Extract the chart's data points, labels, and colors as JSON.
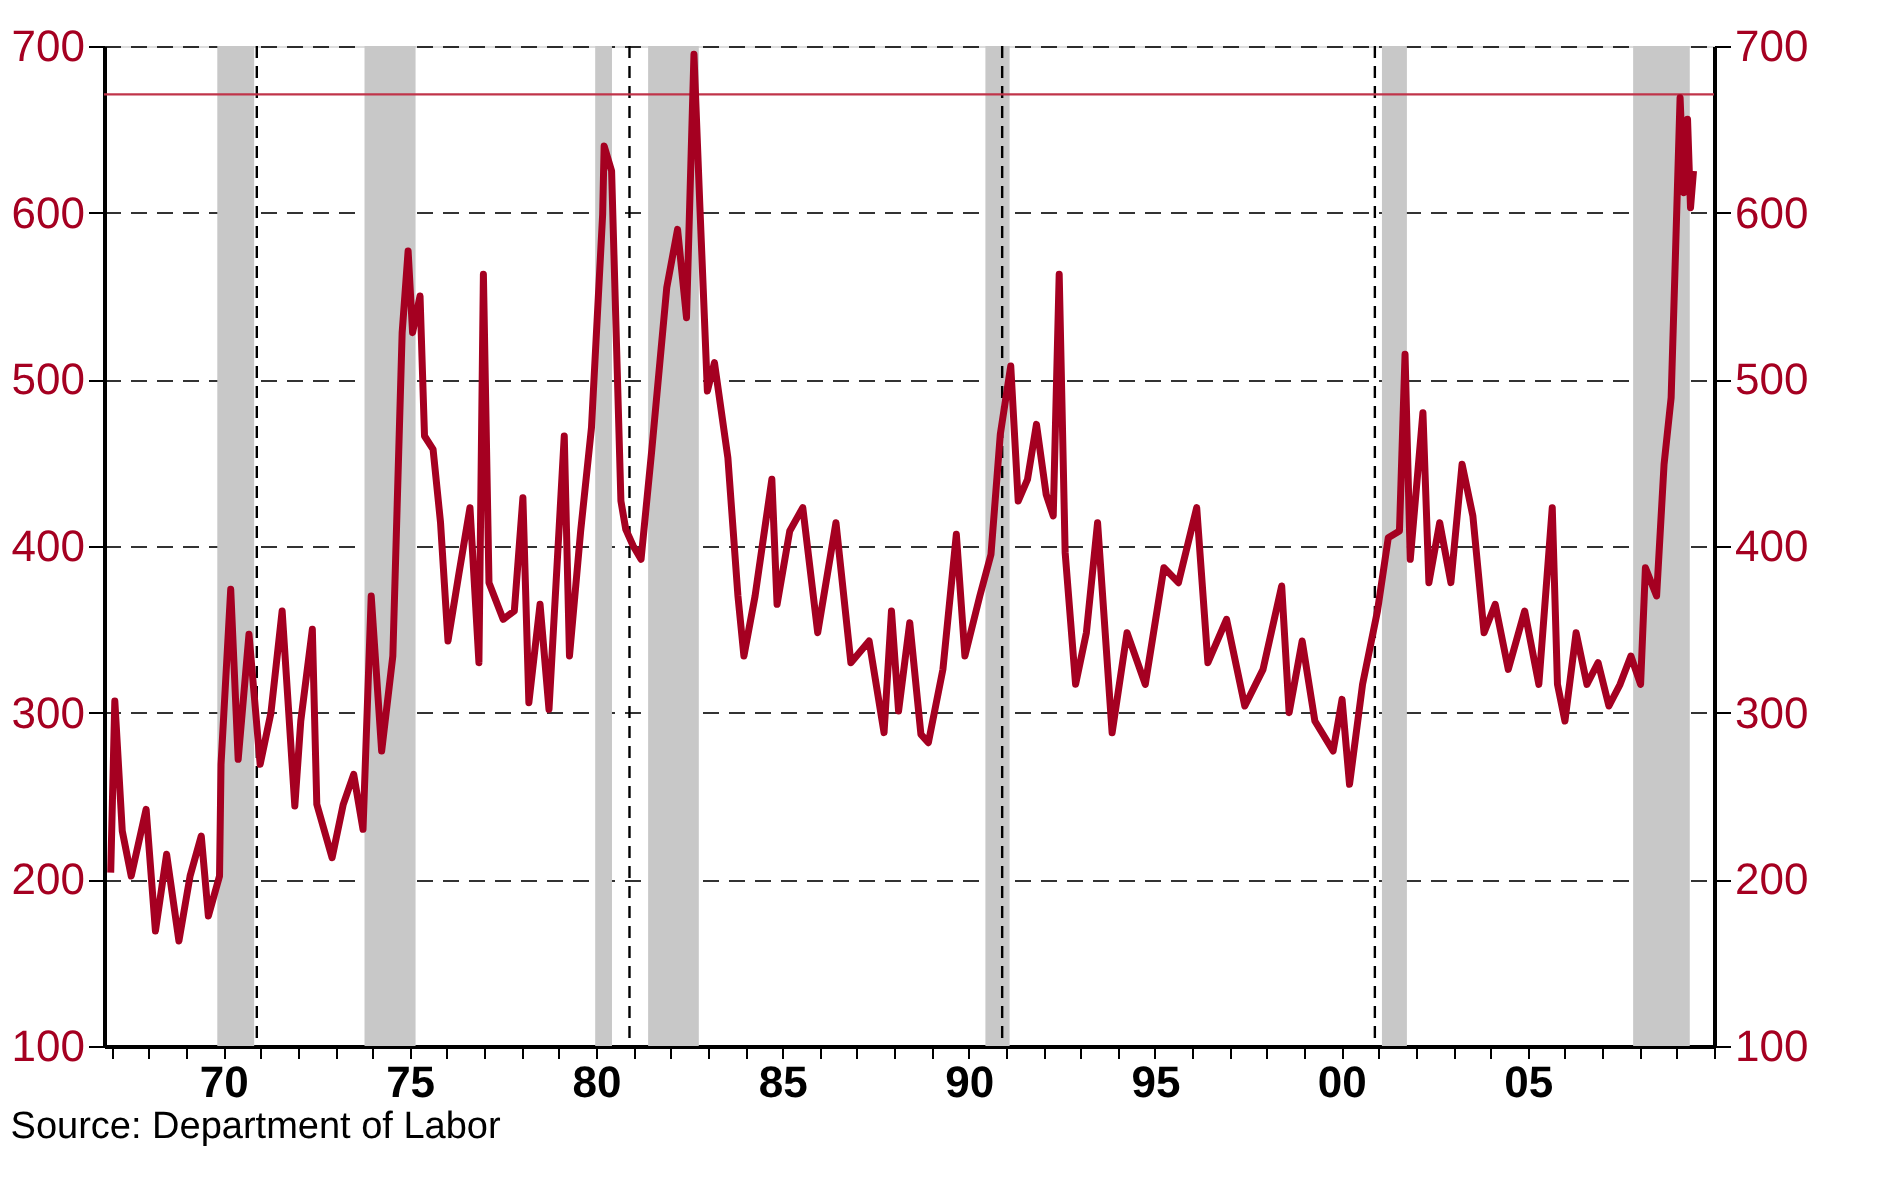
{
  "chart_data": {
    "type": "line",
    "x": [
      1966.98,
      1967.09,
      1967.29,
      1967.53,
      1967.93,
      1968.18,
      1968.48,
      1968.81,
      1969.11,
      1969.41,
      1969.6,
      1969.9,
      1969.94,
      1970.2,
      1970.4,
      1970.69,
      1970.99,
      1971.28,
      1971.58,
      1971.92,
      1972.08,
      1972.39,
      1972.51,
      1972.92,
      1973.22,
      1973.5,
      1973.75,
      1973.97,
      1974.25,
      1974.55,
      1974.8,
      1974.96,
      1975.08,
      1975.28,
      1975.4,
      1975.63,
      1975.83,
      1976.03,
      1976.32,
      1976.62,
      1976.86,
      1976.98,
      1977.13,
      1977.51,
      1977.81,
      1978.04,
      1978.2,
      1978.5,
      1978.74,
      1979.15,
      1979.29,
      1979.59,
      1979.88,
      1980.18,
      1980.22,
      1980.42,
      1980.67,
      1980.8,
      1981.0,
      1981.21,
      1981.5,
      1981.9,
      1982.19,
      1982.43,
      1982.63,
      1982.79,
      1982.99,
      1983.18,
      1983.54,
      1983.81,
      1983.97,
      1984.27,
      1984.72,
      1984.86,
      1985.2,
      1985.55,
      1985.95,
      1986.44,
      1986.84,
      1987.33,
      1987.73,
      1987.93,
      1988.12,
      1988.42,
      1988.72,
      1988.92,
      1989.31,
      1989.67,
      1989.9,
      1990.3,
      1990.6,
      1990.85,
      1991.13,
      1991.33,
      1991.58,
      1991.82,
      1992.08,
      1992.27,
      1992.43,
      1992.59,
      1992.87,
      1993.16,
      1993.46,
      1993.85,
      1994.25,
      1994.74,
      1995.24,
      1995.63,
      1996.12,
      1996.42,
      1996.92,
      1997.41,
      1997.9,
      1998.4,
      1998.6,
      1998.95,
      1999.29,
      1999.78,
      2000.02,
      2000.22,
      2000.57,
      2000.97,
      2001.26,
      2001.56,
      2001.71,
      2001.85,
      2002.19,
      2002.35,
      2002.64,
      2002.94,
      2003.24,
      2003.53,
      2003.83,
      2004.13,
      2004.48,
      2004.92,
      2005.3,
      2005.66,
      2005.8,
      2006.0,
      2006.3,
      2006.59,
      2006.89,
      2007.18,
      2007.48,
      2007.77,
      2008.03,
      2008.16,
      2008.46,
      2008.66,
      2008.85,
      2008.95,
      2009.09,
      2009.19,
      2009.29,
      2009.37,
      2009.45
    ],
    "series": [
      {
        "color": "#a50021",
        "values": [
          204,
          307,
          229,
          202,
          242,
          169,
          215,
          163,
          202,
          226,
          178,
          202,
          269,
          374,
          272,
          347,
          269,
          300,
          361,
          244,
          295,
          350,
          245,
          213,
          245,
          263,
          230,
          370,
          277,
          334,
          528,
          577,
          528,
          550,
          466,
          458,
          414,
          343,
          383,
          423,
          330,
          563,
          378,
          356,
          361,
          429,
          306,
          365,
          302,
          466,
          334,
          409,
          471,
          599,
          640,
          625,
          427,
          410,
          400,
          392,
          458,
          555,
          590,
          537,
          695,
          603,
          493,
          510,
          453,
          370,
          334,
          370,
          440,
          365,
          409,
          423,
          348,
          414,
          330,
          343,
          288,
          361,
          301,
          354,
          287,
          282,
          326,
          407,
          334,
          370,
          395,
          467,
          508,
          427,
          440,
          473,
          431,
          418,
          563,
          396,
          317,
          348,
          414,
          288,
          348,
          317,
          387,
          378,
          423,
          330,
          356,
          304,
          326,
          376,
          300,
          343,
          295,
          277,
          308,
          257,
          317,
          361,
          405,
          409,
          515,
          392,
          480,
          378,
          414,
          378,
          449,
          418,
          348,
          365,
          326,
          361,
          317,
          423,
          317,
          295,
          348,
          317,
          330,
          304,
          317,
          334,
          317,
          387,
          370,
          449,
          489,
          563,
          669,
          612,
          656,
          603,
          625
        ]
      }
    ],
    "xlim": [
      1966.8,
      2010
    ],
    "xticks": [
      {
        "value": 1967,
        "label": null
      },
      {
        "value": 1968,
        "label": null
      },
      {
        "value": 1969,
        "label": null
      },
      {
        "value": 1970,
        "label": "70"
      },
      {
        "value": 1971,
        "label": null
      },
      {
        "value": 1972,
        "label": null
      },
      {
        "value": 1973,
        "label": null
      },
      {
        "value": 1974,
        "label": null
      },
      {
        "value": 1975,
        "label": "75"
      },
      {
        "value": 1976,
        "label": null
      },
      {
        "value": 1977,
        "label": null
      },
      {
        "value": 1978,
        "label": null
      },
      {
        "value": 1979,
        "label": null
      },
      {
        "value": 1980,
        "label": "80"
      },
      {
        "value": 1981,
        "label": null
      },
      {
        "value": 1982,
        "label": null
      },
      {
        "value": 1983,
        "label": null
      },
      {
        "value": 1984,
        "label": null
      },
      {
        "value": 1985,
        "label": "85"
      },
      {
        "value": 1986,
        "label": null
      },
      {
        "value": 1987,
        "label": null
      },
      {
        "value": 1988,
        "label": null
      },
      {
        "value": 1989,
        "label": null
      },
      {
        "value": 1990,
        "label": "90"
      },
      {
        "value": 1991,
        "label": null
      },
      {
        "value": 1992,
        "label": null
      },
      {
        "value": 1993,
        "label": null
      },
      {
        "value": 1994,
        "label": null
      },
      {
        "value": 1995,
        "label": "95"
      },
      {
        "value": 1996,
        "label": null
      },
      {
        "value": 1997,
        "label": null
      },
      {
        "value": 1998,
        "label": null
      },
      {
        "value": 1999,
        "label": null
      },
      {
        "value": 2000,
        "label": "00"
      },
      {
        "value": 2001,
        "label": null
      },
      {
        "value": 2002,
        "label": null
      },
      {
        "value": 2003,
        "label": null
      },
      {
        "value": 2004,
        "label": null
      },
      {
        "value": 2005,
        "label": "05"
      },
      {
        "value": 2006,
        "label": null
      },
      {
        "value": 2007,
        "label": null
      },
      {
        "value": 2008,
        "label": null
      },
      {
        "value": 2009,
        "label": null
      },
      {
        "value": 2010,
        "label": null
      }
    ],
    "ylim": [
      100,
      700
    ],
    "yticks": [
      100,
      200,
      300,
      400,
      500,
      600,
      700
    ],
    "y2lim": [
      100,
      700
    ],
    "y2ticks": [
      100,
      200,
      300,
      400,
      500,
      600,
      700
    ],
    "grid": "y",
    "line_style": "solid",
    "marker": "none",
    "bands": [
      {
        "axis": "x",
        "from": 1969.84,
        "to": 1970.83,
        "color": "#c8c8c8"
      },
      {
        "axis": "x",
        "from": 1973.79,
        "to": 1975.16,
        "color": "#c8c8c8"
      },
      {
        "axis": "x",
        "from": 1979.98,
        "to": 1980.43,
        "color": "#c8c8c8"
      },
      {
        "axis": "x",
        "from": 1981.4,
        "to": 1982.76,
        "color": "#c8c8c8"
      },
      {
        "axis": "x",
        "from": 1990.45,
        "to": 1991.1,
        "color": "#c8c8c8"
      },
      {
        "axis": "x",
        "from": 2001.09,
        "to": 2001.76,
        "color": "#c8c8c8"
      },
      {
        "axis": "x",
        "from": 2007.83,
        "to": 2009.35,
        "color": "#c8c8c8"
      }
    ],
    "ref_lines": [
      {
        "axis": "x",
        "value": 1970.9,
        "color": "#000000",
        "line_style": "dashed"
      },
      {
        "axis": "x",
        "value": 1980.9,
        "color": "#000000",
        "line_style": "dashed"
      },
      {
        "axis": "x",
        "value": 1990.9,
        "color": "#000000",
        "line_style": "dashed"
      },
      {
        "axis": "x",
        "value": 2000.9,
        "color": "#000000",
        "line_style": "dashed"
      },
      {
        "axis": "y",
        "value": 671,
        "color": "#c0344a",
        "line_style": "solid"
      }
    ],
    "annotations": [
      "Source:  Department of Labor"
    ]
  }
}
